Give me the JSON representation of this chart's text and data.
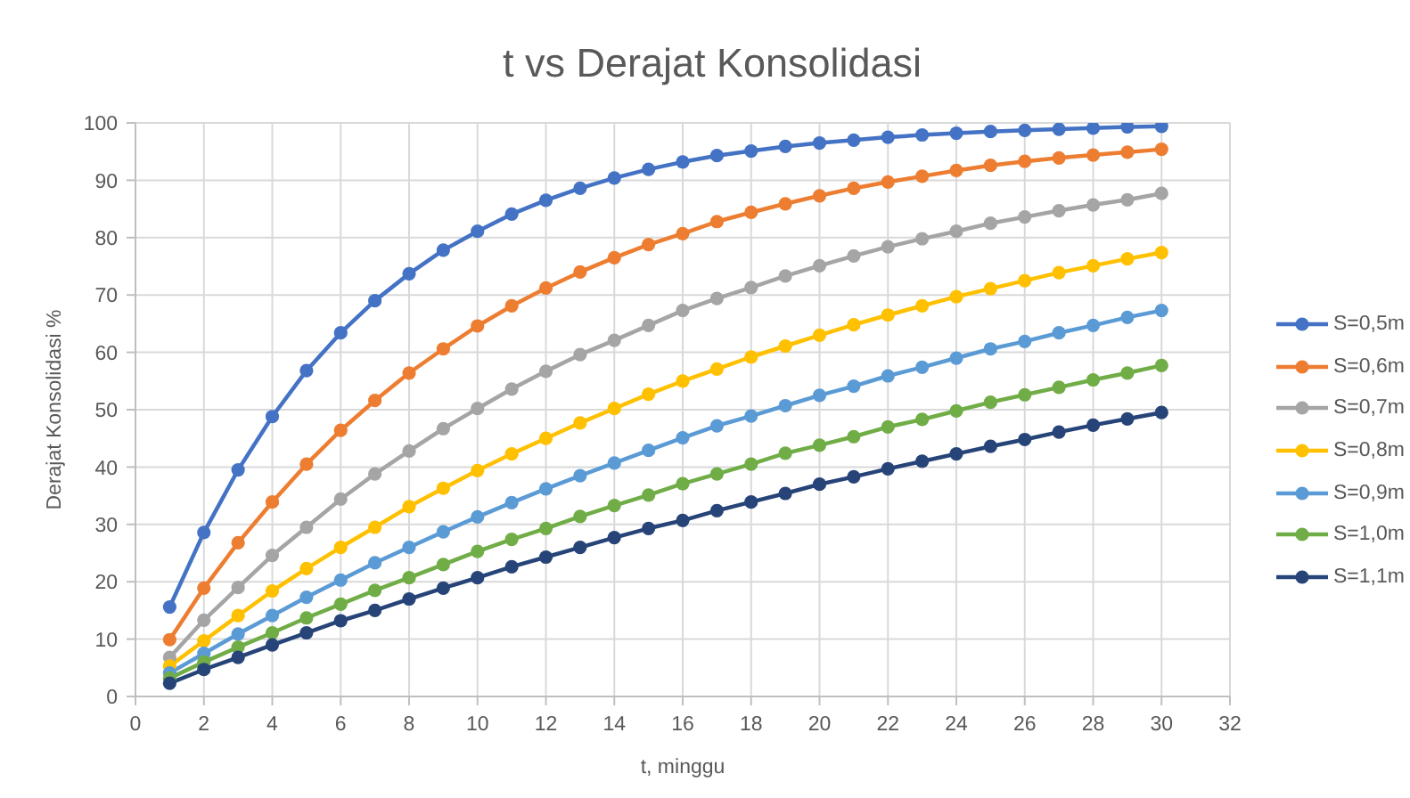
{
  "chart_data": {
    "type": "line",
    "title": "t vs Derajat Konsolidasi",
    "xlabel": "t, minggu",
    "ylabel": "Derajat Konsolidasi %",
    "x": [
      1,
      2,
      3,
      4,
      5,
      6,
      7,
      8,
      9,
      10,
      11,
      12,
      13,
      14,
      15,
      16,
      17,
      18,
      19,
      20,
      21,
      22,
      23,
      24,
      25,
      26,
      27,
      28,
      29,
      30
    ],
    "series": [
      {
        "name": "S=0,5m",
        "color": "#4472c4",
        "values": [
          15.6,
          28.6,
          39.5,
          48.8,
          56.8,
          63.4,
          69.0,
          73.7,
          77.8,
          81.1,
          84.1,
          86.5,
          88.6,
          90.4,
          91.9,
          93.2,
          94.3,
          95.1,
          95.9,
          96.5,
          97.0,
          97.5,
          97.9,
          98.2,
          98.5,
          98.7,
          98.9,
          99.1,
          99.3,
          99.4
        ]
      },
      {
        "name": "S=0,6m",
        "color": "#ed7d31",
        "values": [
          9.9,
          18.9,
          26.8,
          33.9,
          40.5,
          46.4,
          51.6,
          56.4,
          60.6,
          64.6,
          68.1,
          71.2,
          74.0,
          76.5,
          78.8,
          80.7,
          82.8,
          84.4,
          85.9,
          87.3,
          88.6,
          89.7,
          90.7,
          91.7,
          92.6,
          93.3,
          93.9,
          94.4,
          94.9,
          95.4
        ]
      },
      {
        "name": "S=0,7m",
        "color": "#a5a5a5",
        "values": [
          6.8,
          13.3,
          19.0,
          24.6,
          29.5,
          34.4,
          38.8,
          42.8,
          46.7,
          50.2,
          53.6,
          56.7,
          59.6,
          62.1,
          64.7,
          67.3,
          69.4,
          71.3,
          73.3,
          75.1,
          76.8,
          78.4,
          79.8,
          81.1,
          82.5,
          83.6,
          84.7,
          85.7,
          86.6,
          87.7
        ]
      },
      {
        "name": "S=0,8m",
        "color": "#ffc000",
        "values": [
          5.3,
          9.7,
          14.1,
          18.4,
          22.3,
          26.0,
          29.5,
          33.1,
          36.3,
          39.4,
          42.3,
          45.0,
          47.7,
          50.2,
          52.7,
          55.0,
          57.1,
          59.2,
          61.1,
          63.0,
          64.8,
          66.5,
          68.1,
          69.7,
          71.1,
          72.5,
          73.9,
          75.1,
          76.3,
          77.4
        ]
      },
      {
        "name": "S=0,9m",
        "color": "#5b9bd5",
        "values": [
          4.1,
          7.5,
          10.9,
          14.1,
          17.3,
          20.3,
          23.3,
          26.0,
          28.7,
          31.3,
          33.8,
          36.2,
          38.5,
          40.7,
          42.9,
          45.1,
          47.2,
          48.9,
          50.7,
          52.5,
          54.1,
          55.9,
          57.4,
          59.0,
          60.6,
          61.9,
          63.4,
          64.7,
          66.1,
          67.3
        ]
      },
      {
        "name": "S=1,0m",
        "color": "#70ad47",
        "values": [
          3.2,
          6.0,
          8.6,
          11.1,
          13.7,
          16.1,
          18.5,
          20.7,
          23.0,
          25.3,
          27.4,
          29.3,
          31.4,
          33.3,
          35.1,
          37.1,
          38.8,
          40.5,
          42.4,
          43.8,
          45.3,
          47.0,
          48.3,
          49.8,
          51.3,
          52.6,
          53.9,
          55.2,
          56.4,
          57.7
        ]
      },
      {
        "name": "S=1,1m",
        "color": "#264478",
        "values": [
          2.3,
          4.7,
          6.8,
          9.0,
          11.1,
          13.2,
          15.0,
          17.0,
          18.9,
          20.7,
          22.6,
          24.3,
          26.0,
          27.7,
          29.3,
          30.7,
          32.4,
          33.9,
          35.4,
          37.0,
          38.3,
          39.7,
          41.0,
          42.3,
          43.6,
          44.8,
          46.1,
          47.3,
          48.4,
          49.5
        ]
      }
    ],
    "xlim": [
      0,
      32
    ],
    "xticks": [
      0,
      2,
      4,
      6,
      8,
      10,
      12,
      14,
      16,
      18,
      20,
      22,
      24,
      26,
      28,
      30,
      32
    ],
    "ylim": [
      0,
      100
    ],
    "yticks": [
      0,
      10,
      20,
      30,
      40,
      50,
      60,
      70,
      80,
      90,
      100
    ],
    "grid": true,
    "legend": "right",
    "marker": "circle",
    "line_style": "solid"
  }
}
